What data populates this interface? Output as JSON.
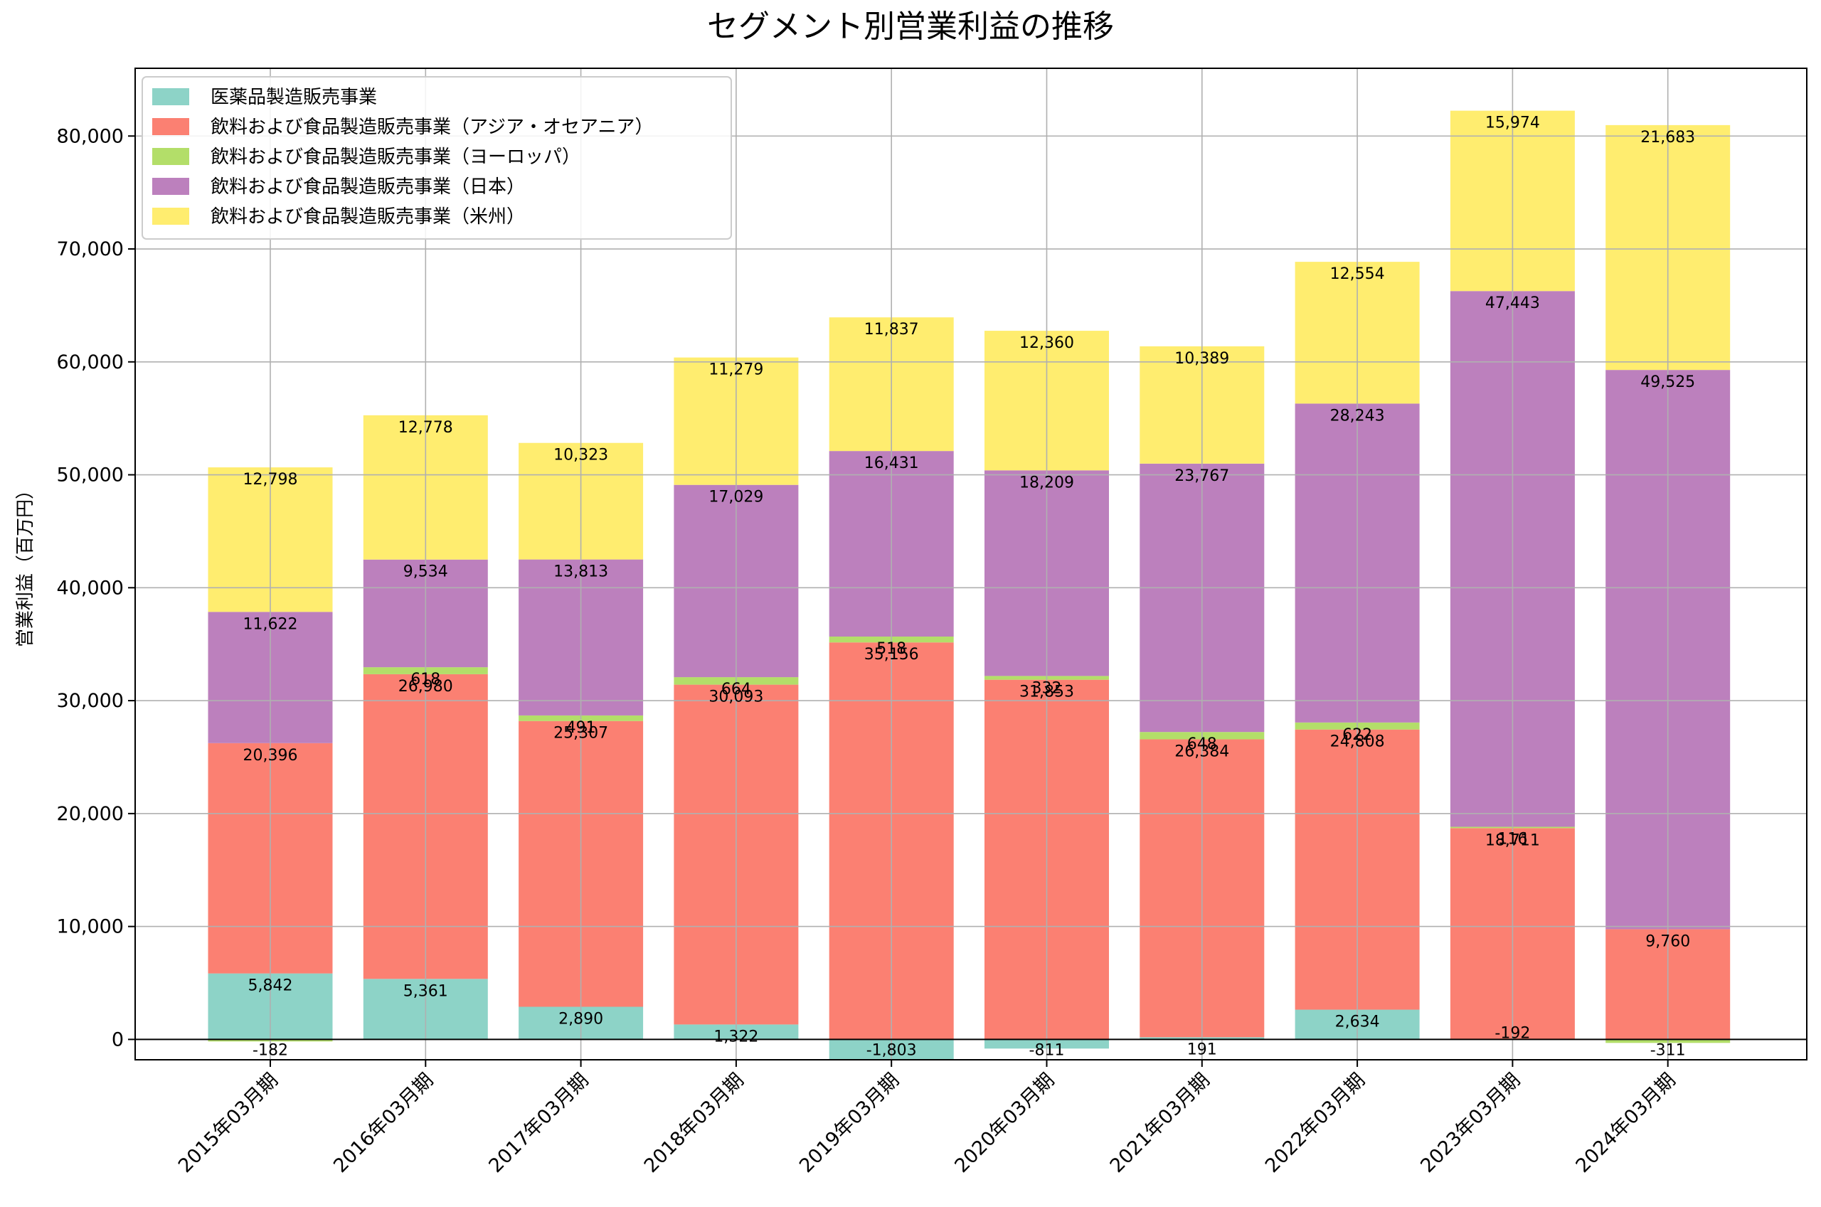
{
  "chart_data": {
    "type": "bar",
    "stacked": true,
    "title": "セグメント別営業利益の推移",
    "xlabel": "",
    "ylabel": "営業利益（百万円）",
    "ylim": [
      -1803,
      86000
    ],
    "yticks": [
      0,
      10000,
      20000,
      30000,
      40000,
      50000,
      60000,
      70000,
      80000
    ],
    "ytick_labels": [
      "0",
      "10,000",
      "20,000",
      "30,000",
      "40,000",
      "50,000",
      "60,000",
      "70,000",
      "80,000"
    ],
    "grid": true,
    "legend_position": "top-left",
    "categories": [
      "2015年03月期",
      "2016年03月期",
      "2017年03月期",
      "2018年03月期",
      "2019年03月期",
      "2020年03月期",
      "2021年03月期",
      "2022年03月期",
      "2023年03月期",
      "2024年03月期"
    ],
    "series": [
      {
        "name": "医薬品製造販売事業",
        "color": "#8dd3c7",
        "values": [
          5842,
          5361,
          2890,
          1322,
          -1803,
          -811,
          191,
          2634,
          null,
          null
        ],
        "labels": [
          "5,842",
          "5,361",
          "2,890",
          "1,322",
          "-1,803",
          "-811",
          "191",
          "2,634",
          "",
          ""
        ]
      },
      {
        "name": "飲料および食品製造販売事業（アジア・オセアニア）",
        "color": "#fb8072",
        "values": [
          20396,
          26980,
          25307,
          30093,
          35156,
          31853,
          26384,
          24808,
          18711,
          9760
        ],
        "labels": [
          "20,396",
          "26,980",
          "25,307",
          "30,093",
          "35,156",
          "31,853",
          "26,384",
          "24,808",
          "18,711",
          "9,760"
        ]
      },
      {
        "name": "飲料および食品製造販売事業（ヨーロッパ）",
        "color": "#b3de69",
        "values": [
          -182,
          618,
          491,
          664,
          518,
          332,
          648,
          622,
          116,
          -311
        ],
        "labels": [
          "-182",
          "618",
          "491",
          "664",
          "518",
          "332",
          "648",
          "622",
          "116",
          "-311"
        ]
      },
      {
        "name": "飲料および食品製造販売事業（日本）",
        "color": "#bc80bd",
        "values": [
          11622,
          9534,
          13813,
          17029,
          16431,
          18209,
          23767,
          28243,
          47443,
          49525
        ],
        "labels": [
          "11,622",
          "9,534",
          "13,813",
          "17,029",
          "16,431",
          "18,209",
          "23,767",
          "28,243",
          "47,443",
          "49,525"
        ]
      },
      {
        "name": "飲料および食品製造販売事業（米州）",
        "color": "#ffed6f",
        "values": [
          12798,
          12778,
          10323,
          11279,
          11837,
          12360,
          10389,
          12554,
          15974,
          21683
        ],
        "labels": [
          "12,798",
          "12,778",
          "10,323",
          "11,279",
          "11,837",
          "12,360",
          "10,389",
          "12,554",
          "15,974",
          "21,683"
        ]
      }
    ],
    "extra_labels": [
      {
        "category_index": 8,
        "text": "-192"
      }
    ]
  }
}
